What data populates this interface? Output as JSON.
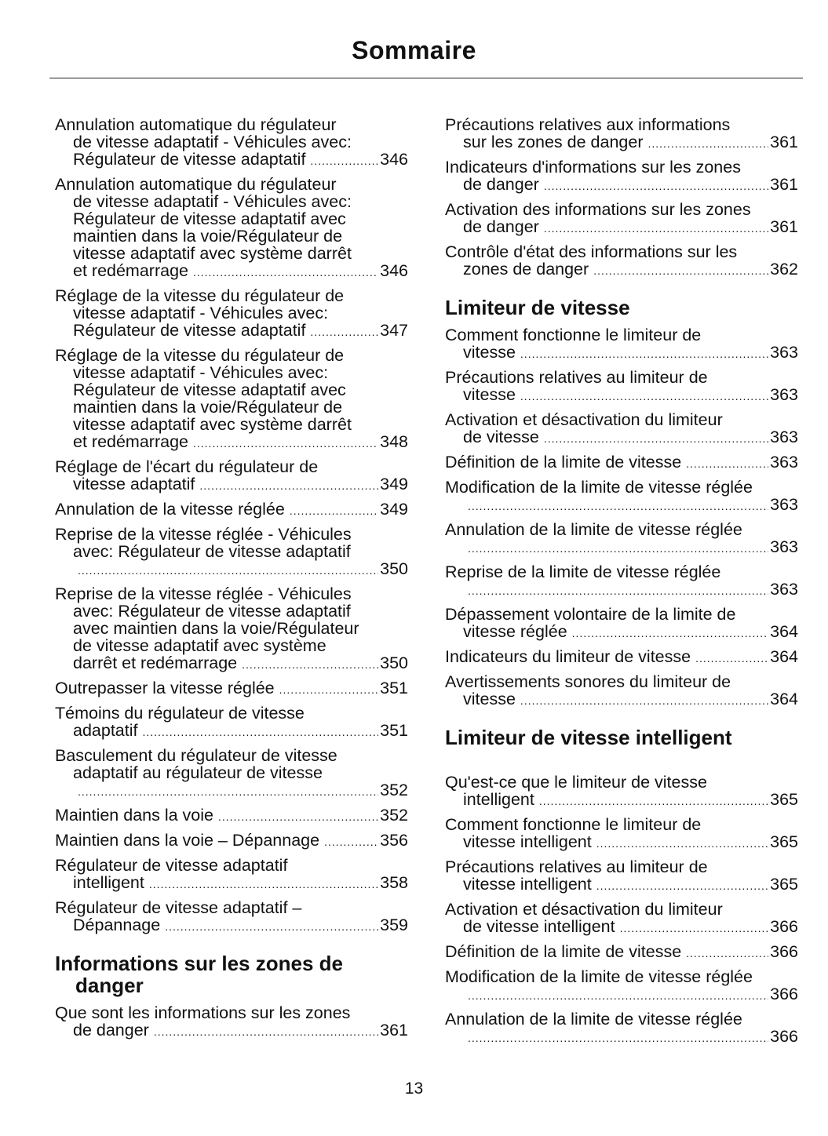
{
  "title": "Sommaire",
  "page_number": "13",
  "left_column": [
    {
      "type": "entry",
      "lines": [
        "Annulation automatique du régulateur",
        "de vitesse adaptatif - Véhicules avec:",
        "Régulateur de vitesse adaptatif"
      ],
      "page": "346"
    },
    {
      "type": "entry",
      "lines": [
        "Annulation automatique du régulateur",
        "de vitesse adaptatif - Véhicules avec:",
        "Régulateur de vitesse adaptatif avec",
        "maintien dans la voie/Régulateur de",
        "vitesse adaptatif avec système darrêt",
        "et redémarrage"
      ],
      "page": "346"
    },
    {
      "type": "entry",
      "lines": [
        "Réglage de la vitesse du régulateur de",
        "vitesse adaptatif - Véhicules avec:",
        "Régulateur de vitesse adaptatif"
      ],
      "page": "347"
    },
    {
      "type": "entry",
      "lines": [
        "Réglage de la vitesse du régulateur de",
        "vitesse adaptatif - Véhicules avec:",
        "Régulateur de vitesse adaptatif avec",
        "maintien dans la voie/Régulateur de",
        "vitesse adaptatif avec système darrêt",
        "et redémarrage"
      ],
      "page": "348"
    },
    {
      "type": "entry",
      "lines": [
        "Réglage de l'écart du régulateur de",
        "vitesse adaptatif"
      ],
      "page": "349"
    },
    {
      "type": "entry",
      "lines": [
        "Annulation de la vitesse réglée"
      ],
      "page": "349"
    },
    {
      "type": "entry",
      "lines": [
        "Reprise de la vitesse réglée - Véhicules",
        "avec: Régulateur de vitesse adaptatif",
        ""
      ],
      "page": "350"
    },
    {
      "type": "entry",
      "lines": [
        "Reprise de la vitesse réglée - Véhicules",
        "avec: Régulateur de vitesse adaptatif",
        "avec maintien dans la voie/Régulateur",
        "de vitesse adaptatif avec système",
        "darrêt et redémarrage"
      ],
      "page": "350"
    },
    {
      "type": "entry",
      "lines": [
        "Outrepasser la vitesse réglée"
      ],
      "page": "351"
    },
    {
      "type": "entry",
      "lines": [
        "Témoins du régulateur de vitesse",
        "adaptatif"
      ],
      "page": "351"
    },
    {
      "type": "entry",
      "lines": [
        "Basculement du régulateur de vitesse",
        "adaptatif au régulateur de vitesse",
        ""
      ],
      "page": "352"
    },
    {
      "type": "entry",
      "lines": [
        "Maintien dans la voie"
      ],
      "page": "352"
    },
    {
      "type": "entry",
      "lines": [
        "Maintien dans la voie – Dépannage"
      ],
      "page": "356"
    },
    {
      "type": "entry",
      "lines": [
        "Régulateur de vitesse adaptatif",
        "intelligent"
      ],
      "page": "358"
    },
    {
      "type": "entry",
      "lines": [
        "Régulateur de vitesse adaptatif –",
        "Dépannage"
      ],
      "page": "359"
    },
    {
      "type": "heading",
      "lines": [
        "Informations sur les zones de",
        "danger"
      ]
    },
    {
      "type": "entry",
      "lines": [
        "Que sont les informations sur les zones",
        "de danger"
      ],
      "page": "361"
    }
  ],
  "right_column": [
    {
      "type": "entry",
      "lines": [
        "Précautions relatives aux informations",
        "sur les zones de danger"
      ],
      "page": "361"
    },
    {
      "type": "entry",
      "lines": [
        "Indicateurs d'informations sur les zones",
        "de danger"
      ],
      "page": "361"
    },
    {
      "type": "entry",
      "lines": [
        "Activation des informations sur les zones",
        "de danger"
      ],
      "page": "361"
    },
    {
      "type": "entry",
      "lines": [
        "Contrôle d'état des informations sur les",
        "zones de danger"
      ],
      "page": "362"
    },
    {
      "type": "heading",
      "lines": [
        "Limiteur de vitesse"
      ]
    },
    {
      "type": "entry",
      "lines": [
        "Comment fonctionne le limiteur de",
        "vitesse"
      ],
      "page": "363"
    },
    {
      "type": "entry",
      "lines": [
        "Précautions relatives au limiteur de",
        "vitesse"
      ],
      "page": "363"
    },
    {
      "type": "entry",
      "lines": [
        "Activation et désactivation du limiteur",
        "de vitesse"
      ],
      "page": "363"
    },
    {
      "type": "entry",
      "lines": [
        "Définition de la limite de vitesse"
      ],
      "page": "363"
    },
    {
      "type": "entry",
      "lines": [
        "Modification de la limite de vitesse réglée",
        ""
      ],
      "page": "363"
    },
    {
      "type": "entry",
      "lines": [
        "Annulation de la limite de vitesse réglée",
        ""
      ],
      "page": "363"
    },
    {
      "type": "entry",
      "lines": [
        "Reprise de la limite de vitesse réglée",
        ""
      ],
      "page": "363"
    },
    {
      "type": "entry",
      "lines": [
        "Dépassement volontaire de la limite de",
        "vitesse réglée"
      ],
      "page": "364"
    },
    {
      "type": "entry",
      "lines": [
        "Indicateurs du limiteur de vitesse"
      ],
      "page": "364"
    },
    {
      "type": "entry",
      "lines": [
        "Avertissements sonores du limiteur de",
        "vitesse"
      ],
      "page": "364"
    },
    {
      "type": "heading",
      "spaced": true,
      "lines": [
        "Limiteur de vitesse intelligent"
      ]
    },
    {
      "type": "entry",
      "lines": [
        "Qu'est-ce que le limiteur de vitesse",
        "intelligent"
      ],
      "page": "365"
    },
    {
      "type": "entry",
      "lines": [
        "Comment fonctionne le limiteur de",
        "vitesse intelligent"
      ],
      "page": "365"
    },
    {
      "type": "entry",
      "lines": [
        "Précautions relatives au limiteur de",
        "vitesse intelligent"
      ],
      "page": "365"
    },
    {
      "type": "entry",
      "lines": [
        "Activation et désactivation du limiteur",
        "de vitesse intelligent"
      ],
      "page": "366"
    },
    {
      "type": "entry",
      "lines": [
        "Définition de la limite de vitesse"
      ],
      "page": "366"
    },
    {
      "type": "entry",
      "lines": [
        "Modification de la limite de vitesse réglée",
        ""
      ],
      "page": "366"
    },
    {
      "type": "entry",
      "lines": [
        "Annulation de la limite de vitesse réglée",
        ""
      ],
      "page": "366"
    }
  ]
}
